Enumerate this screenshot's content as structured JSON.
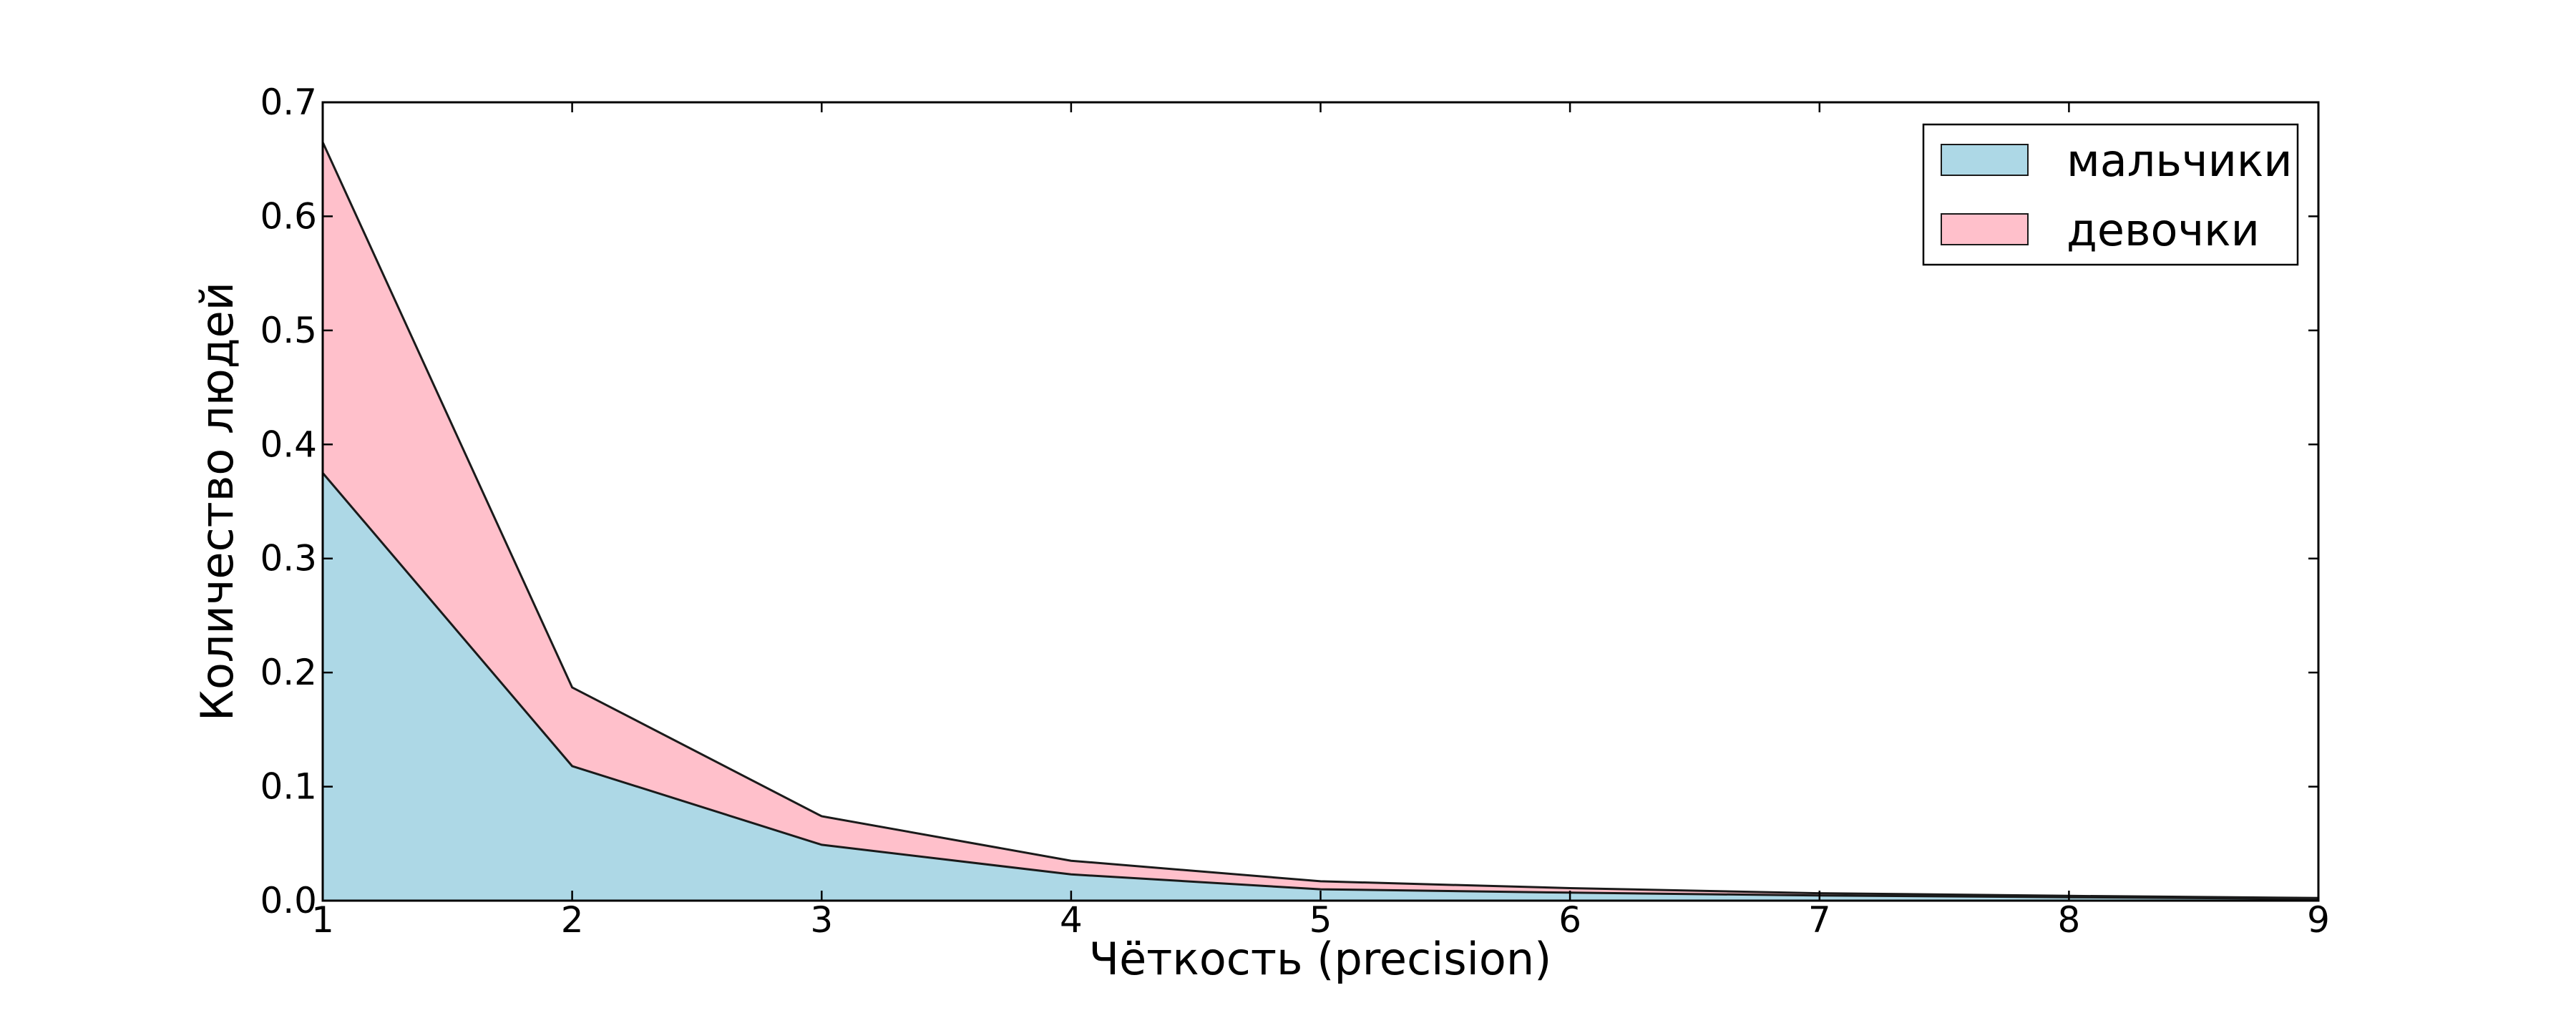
{
  "chart_data": {
    "type": "area",
    "stacked": true,
    "title": "",
    "xlabel": "Чёткость (precision)",
    "ylabel": "Количество людей",
    "x": [
      1,
      2,
      3,
      4,
      5,
      6,
      7,
      8,
      9
    ],
    "series": [
      {
        "name": "мальчики",
        "color": "#add8e6",
        "values": [
          0.375,
          0.118,
          0.049,
          0.023,
          0.01,
          0.007,
          0.0045,
          0.003,
          0.0015
        ]
      },
      {
        "name": "девочки",
        "color": "#ffc0cb",
        "values": [
          0.29,
          0.069,
          0.025,
          0.012,
          0.007,
          0.004,
          0.002,
          0.0012,
          0.0008
        ]
      }
    ],
    "stack_totals": [
      0.665,
      0.187,
      0.074,
      0.035,
      0.017,
      0.011,
      0.0065,
      0.0042,
      0.0023
    ],
    "xlim": [
      1,
      9
    ],
    "ylim": [
      0.0,
      0.7
    ],
    "x_ticks": [
      "1",
      "2",
      "3",
      "4",
      "5",
      "6",
      "7",
      "8",
      "9"
    ],
    "y_ticks": [
      "0.0",
      "0.1",
      "0.2",
      "0.3",
      "0.4",
      "0.5",
      "0.6",
      "0.7"
    ],
    "grid": false,
    "legend_position": "upper right",
    "legend_entries": [
      "мальчики",
      "девочки"
    ],
    "edge_color": "#1a1a1a",
    "axis_color": "#000000",
    "background_color": "#ffffff"
  }
}
